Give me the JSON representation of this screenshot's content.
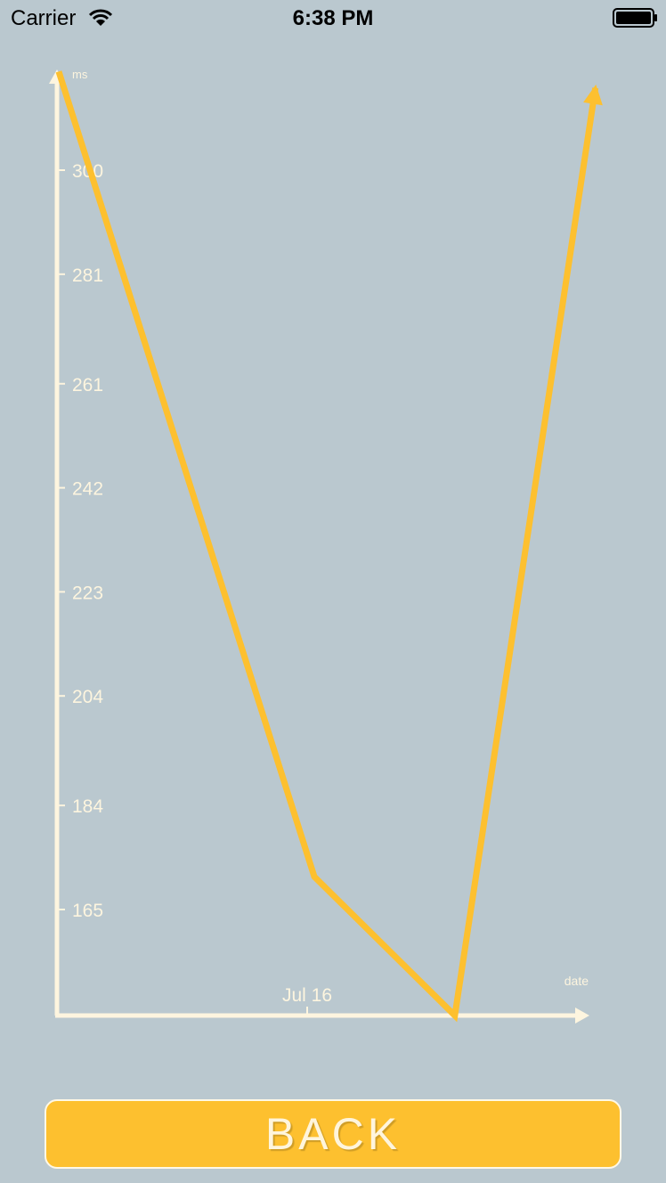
{
  "status_bar": {
    "carrier": "Carrier",
    "time": "6:38 PM"
  },
  "colors": {
    "background": "#bac8cf",
    "axis": "#fdf5df",
    "line": "#fdc02f",
    "button": "#fdc02f"
  },
  "chart_data": {
    "type": "line",
    "title": "",
    "xlabel": "date",
    "ylabel": "ms",
    "y_ticks": [
      165,
      184,
      204,
      223,
      242,
      261,
      281,
      300
    ],
    "x_ticks": [
      "Jul 16"
    ],
    "x": [
      0,
      1,
      1.55,
      2.1
    ],
    "values": [
      318,
      171,
      142,
      315
    ],
    "grid": false,
    "legend": "none"
  },
  "back_button": {
    "label": "BACK"
  }
}
